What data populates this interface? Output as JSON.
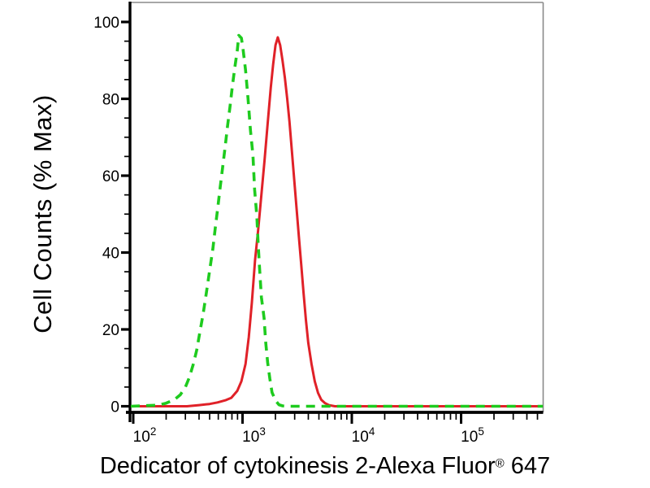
{
  "figure": {
    "y_title": "Cell Counts (% Max)",
    "x_title": {
      "prefix": "Dedicator of cytokinesis 2-Alexa Fluor",
      "registered": "®",
      "suffix": " 647"
    }
  },
  "colors": {
    "background": "#ffffff",
    "axis": "#000000",
    "frame_gray": "#8a8a8a",
    "text": "#000000",
    "green_curve": "#1ecb1e",
    "red_curve": "#e02128"
  },
  "chart_data": {
    "type": "line",
    "title": "",
    "xlabel": "Dedicator of cytokinesis 2-Alexa Fluor® 647",
    "ylabel": "Cell Counts (% Max)",
    "x_scale": "log",
    "xlim": [
      93,
      575000
    ],
    "ylim": [
      0,
      105
    ],
    "grid": false,
    "legend": null,
    "x_ticks": {
      "majors": [
        {
          "value": 100,
          "base": "10",
          "exp": "2"
        },
        {
          "value": 1000,
          "base": "10",
          "exp": "3"
        },
        {
          "value": 10000,
          "base": "10",
          "exp": "4"
        },
        {
          "value": 100000,
          "base": "10",
          "exp": "5"
        }
      ],
      "minor_multiples": [
        2,
        3,
        4,
        5,
        6,
        7,
        8,
        9
      ]
    },
    "y_ticks": {
      "majors": [
        0,
        20,
        40,
        60,
        80,
        100
      ],
      "minor_step": 5
    },
    "series": [
      {
        "name": "red solid curve",
        "style": "solid",
        "color": "#e02128",
        "points": [
          [
            95,
            0
          ],
          [
            310,
            0
          ],
          [
            400,
            0.3
          ],
          [
            500,
            0.6
          ],
          [
            590,
            1
          ],
          [
            705,
            1.6
          ],
          [
            790,
            2.2
          ],
          [
            895,
            4
          ],
          [
            977,
            6.5
          ],
          [
            1066,
            11
          ],
          [
            1140,
            18
          ],
          [
            1218,
            27
          ],
          [
            1302,
            38
          ],
          [
            1391,
            46
          ],
          [
            1487,
            55
          ],
          [
            1589,
            64
          ],
          [
            1698,
            73.5
          ],
          [
            1815,
            83
          ],
          [
            1907,
            89
          ],
          [
            2003,
            94
          ],
          [
            2104,
            96
          ],
          [
            2210,
            94
          ],
          [
            2322,
            90
          ],
          [
            2439,
            85.5
          ],
          [
            2562,
            80
          ],
          [
            2692,
            74
          ],
          [
            2828,
            66.5
          ],
          [
            2971,
            59
          ],
          [
            3121,
            51.5
          ],
          [
            3279,
            44
          ],
          [
            3444,
            37
          ],
          [
            3618,
            29.5
          ],
          [
            3801,
            22.5
          ],
          [
            3993,
            16.5
          ],
          [
            4277,
            11
          ],
          [
            4581,
            6.5
          ],
          [
            4907,
            3.5
          ],
          [
            5255,
            1.7
          ],
          [
            5696,
            0.8
          ],
          [
            6174,
            0.3
          ],
          [
            7000,
            0
          ],
          [
            10000,
            0
          ],
          [
            100000,
            0
          ],
          [
            560000,
            0
          ]
        ]
      },
      {
        "name": "green dashed curve",
        "style": "dashed",
        "color": "#1ecb1e",
        "points": [
          [
            95,
            0
          ],
          [
            170,
            0.3
          ],
          [
            200,
            0.8
          ],
          [
            240,
            1.8
          ],
          [
            270,
            3
          ],
          [
            300,
            5
          ],
          [
            326,
            7.5
          ],
          [
            355,
            11
          ],
          [
            381,
            14.6
          ],
          [
            407,
            19.3
          ],
          [
            436,
            24
          ],
          [
            466,
            29.4
          ],
          [
            500,
            35.3
          ],
          [
            535,
            41
          ],
          [
            563,
            46.3
          ],
          [
            593,
            51.6
          ],
          [
            625,
            57
          ],
          [
            658,
            62.3
          ],
          [
            693,
            67.5
          ],
          [
            730,
            73
          ],
          [
            768,
            78
          ],
          [
            809,
            83.5
          ],
          [
            852,
            88.3
          ],
          [
            895,
            92.5
          ],
          [
            925,
            96.5
          ],
          [
            977,
            95.8
          ],
          [
            1010,
            93
          ],
          [
            1066,
            87.5
          ],
          [
            1123,
            80
          ],
          [
            1183,
            71.7
          ],
          [
            1246,
            65.4
          ],
          [
            1290,
            56.3
          ],
          [
            1351,
            49.5
          ],
          [
            1391,
            42
          ],
          [
            1432,
            35.8
          ],
          [
            1487,
            28.4
          ],
          [
            1574,
            23
          ],
          [
            1630,
            16.7
          ],
          [
            1698,
            11.4
          ],
          [
            1778,
            7.2
          ],
          [
            1862,
            3.6
          ],
          [
            2003,
            1.5
          ],
          [
            2155,
            0.4
          ],
          [
            2320,
            0.1
          ],
          [
            2560,
            0
          ],
          [
            5000,
            0
          ],
          [
            50000,
            0
          ],
          [
            560000,
            0
          ]
        ]
      }
    ]
  }
}
